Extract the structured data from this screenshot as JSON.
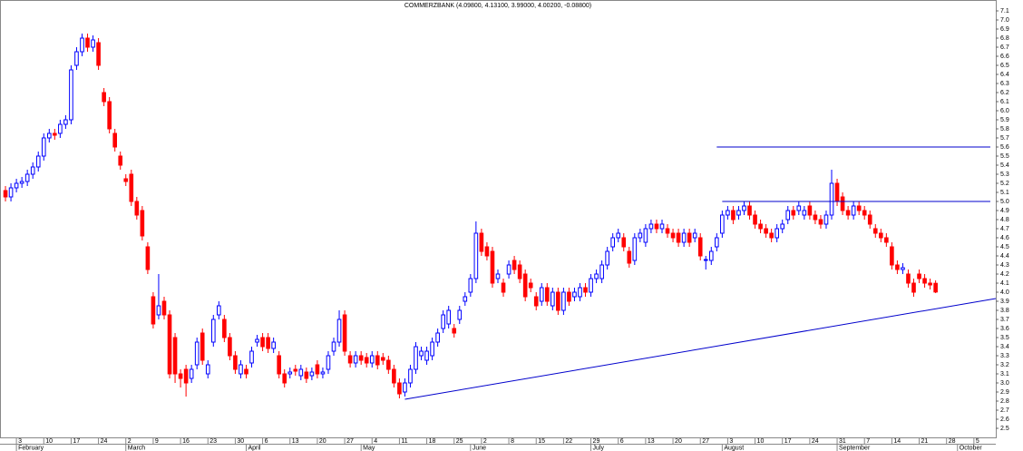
{
  "chart_data": {
    "type": "candlestick",
    "title": "COMMERZBANK (4.09800, 4.13100, 3.99000, 4.00200, -0.08800)",
    "up_color": "#0000ff",
    "down_color": "#ff0000",
    "line_color": "#0000cc",
    "grid": false,
    "xlim": [
      -1,
      181
    ],
    "ylim": [
      2.4,
      7.2
    ],
    "yticks": [
      2.5,
      2.6,
      2.7,
      2.8,
      2.9,
      {
        "value": 3,
        "label": "3.0"
      },
      3.1,
      3.2,
      3.3,
      3.4,
      3.5,
      3.6,
      3.7,
      3.8,
      3.9,
      {
        "value": 4,
        "label": "4.0"
      },
      4.1,
      4.2,
      4.3,
      4.4,
      4.5,
      4.6,
      4.7,
      4.8,
      4.9,
      {
        "value": 5,
        "label": "5.0"
      },
      5.1,
      5.2,
      5.3,
      5.4,
      5.5,
      5.6,
      5.7,
      5.8,
      5.9,
      {
        "value": 6,
        "label": "6.0"
      },
      6.1,
      6.2,
      6.3,
      6.4,
      6.5,
      6.6,
      6.7,
      6.8,
      6.9,
      {
        "value": 7,
        "label": "7.0"
      },
      7.1
    ],
    "xticks": [
      {
        "value": 2,
        "label": "3"
      },
      {
        "value": 7,
        "label": "10"
      },
      {
        "value": 12,
        "label": "17"
      },
      {
        "value": 17,
        "label": "24"
      },
      {
        "value": 22,
        "label": "2"
      },
      {
        "value": 27,
        "label": "9"
      },
      {
        "value": 32,
        "label": "16"
      },
      {
        "value": 37,
        "label": "23"
      },
      {
        "value": 42,
        "label": "30"
      },
      {
        "value": 47,
        "label": "6"
      },
      {
        "value": 52,
        "label": "13"
      },
      {
        "value": 57,
        "label": "20"
      },
      {
        "value": 62,
        "label": "27"
      },
      {
        "value": 67,
        "label": "4"
      },
      {
        "value": 72,
        "label": "11"
      },
      {
        "value": 77,
        "label": "18"
      },
      {
        "value": 82,
        "label": "25"
      },
      {
        "value": 87,
        "label": "2"
      },
      {
        "value": 92,
        "label": "8"
      },
      {
        "value": 97,
        "label": "15"
      },
      {
        "value": 102,
        "label": "22"
      },
      {
        "value": 107,
        "label": "29"
      },
      {
        "value": 112,
        "label": "6"
      },
      {
        "value": 117,
        "label": "13"
      },
      {
        "value": 122,
        "label": "20"
      },
      {
        "value": 127,
        "label": "27"
      },
      {
        "value": 132,
        "label": "3"
      },
      {
        "value": 137,
        "label": "10"
      },
      {
        "value": 142,
        "label": "17"
      },
      {
        "value": 147,
        "label": "24"
      },
      {
        "value": 152,
        "label": "31"
      },
      {
        "value": 157,
        "label": "7"
      },
      {
        "value": 162,
        "label": "14"
      },
      {
        "value": 167,
        "label": "21"
      },
      {
        "value": 172,
        "label": "28"
      },
      {
        "value": 177,
        "label": "5"
      }
    ],
    "month_ticks": [
      {
        "value": 2,
        "label": "February"
      },
      {
        "value": 22,
        "label": "March"
      },
      {
        "value": 44,
        "label": "April"
      },
      {
        "value": 65,
        "label": "May"
      },
      {
        "value": 85,
        "label": "June"
      },
      {
        "value": 107,
        "label": "July"
      },
      {
        "value": 131,
        "label": "August"
      },
      {
        "value": 152,
        "label": "September"
      },
      {
        "value": 174,
        "label": "October"
      }
    ],
    "open": [
      5.12,
      5.05,
      5.15,
      5.2,
      5.22,
      5.3,
      5.38,
      5.5,
      5.7,
      5.75,
      5.75,
      5.85,
      5.9,
      6.5,
      6.65,
      6.8,
      6.7,
      6.75,
      6.2,
      6.1,
      5.75,
      5.5,
      5.25,
      5.3,
      5.0,
      4.9,
      4.5,
      3.95,
      3.75,
      3.9,
      3.75,
      3.5,
      3.1,
      3.15,
      3.05,
      3.2,
      3.55,
      3.1,
      3.45,
      3.75,
      3.7,
      3.5,
      3.3,
      3.1,
      3.15,
      3.22,
      3.45,
      3.5,
      3.5,
      3.38,
      3.3,
      3.1,
      3.1,
      3.15,
      3.08,
      3.12,
      3.08,
      3.2,
      3.1,
      3.15,
      3.35,
      3.45,
      3.75,
      3.3,
      3.22,
      3.3,
      3.28,
      3.22,
      3.3,
      3.28,
      3.25,
      3.15,
      3.0,
      2.9,
      3.0,
      3.15,
      3.3,
      3.25,
      3.3,
      3.45,
      3.6,
      3.65,
      3.6,
      3.7,
      3.9,
      4.0,
      4.15,
      4.65,
      4.5,
      4.45,
      4.15,
      4.1,
      4.2,
      4.35,
      4.3,
      4.2,
      4.1,
      3.95,
      3.9,
      4.05,
      3.85,
      4.0,
      3.8,
      4.0,
      3.95,
      3.95,
      4.05,
      4.0,
      4.15,
      4.15,
      4.3,
      4.5,
      4.6,
      4.6,
      4.45,
      4.35,
      4.6,
      4.55,
      4.7,
      4.75,
      4.7,
      4.7,
      4.65,
      4.65,
      4.55,
      4.65,
      4.6,
      4.6,
      4.35,
      4.35,
      4.5,
      4.65,
      4.85,
      4.9,
      4.85,
      4.9,
      4.95,
      4.85,
      4.75,
      4.7,
      4.65,
      4.6,
      4.7,
      4.8,
      4.9,
      4.9,
      4.85,
      4.95,
      4.85,
      4.8,
      4.75,
      4.85,
      5.2,
      5.05,
      4.9,
      4.85,
      4.95,
      4.9,
      4.85,
      4.7,
      4.65,
      4.6,
      4.5,
      4.3,
      4.25,
      4.2,
      4.1,
      4.2,
      4.15,
      4.1,
      4.098
    ],
    "high": [
      5.17,
      5.2,
      5.25,
      5.27,
      5.35,
      5.43,
      5.55,
      5.75,
      5.8,
      5.8,
      5.9,
      5.95,
      6.5,
      6.7,
      6.85,
      6.85,
      6.83,
      6.8,
      6.25,
      6.15,
      5.8,
      5.55,
      5.3,
      5.35,
      5.05,
      4.95,
      4.55,
      4.0,
      4.2,
      3.95,
      3.8,
      3.55,
      3.15,
      3.2,
      3.2,
      3.5,
      3.6,
      3.25,
      3.75,
      3.9,
      3.75,
      3.55,
      3.35,
      3.25,
      3.2,
      3.4,
      3.53,
      3.55,
      3.55,
      3.5,
      3.35,
      3.15,
      3.17,
      3.2,
      3.2,
      3.17,
      3.17,
      3.25,
      3.17,
      3.35,
      3.5,
      3.8,
      3.8,
      3.35,
      3.35,
      3.35,
      3.33,
      3.35,
      3.35,
      3.33,
      3.3,
      3.2,
      3.05,
      3.05,
      3.2,
      3.45,
      3.4,
      3.4,
      3.5,
      3.6,
      3.8,
      3.85,
      3.65,
      3.85,
      4.0,
      4.2,
      4.78,
      4.7,
      4.55,
      4.5,
      4.25,
      4.15,
      4.35,
      4.4,
      4.35,
      4.25,
      4.15,
      4.0,
      4.1,
      4.1,
      4.05,
      4.05,
      4.05,
      4.05,
      4.05,
      4.1,
      4.1,
      4.2,
      4.25,
      4.35,
      4.5,
      4.65,
      4.7,
      4.65,
      4.5,
      4.65,
      4.7,
      4.75,
      4.8,
      4.8,
      4.8,
      4.75,
      4.7,
      4.7,
      4.7,
      4.7,
      4.7,
      4.65,
      4.4,
      4.5,
      4.65,
      4.9,
      4.95,
      4.95,
      4.95,
      5.0,
      5.0,
      4.9,
      4.8,
      4.75,
      4.7,
      4.75,
      4.8,
      4.95,
      4.95,
      5.0,
      4.95,
      5.0,
      4.9,
      4.85,
      4.9,
      5.35,
      5.25,
      5.1,
      4.95,
      5.0,
      5.0,
      4.95,
      4.9,
      4.75,
      4.7,
      4.65,
      4.55,
      4.35,
      4.32,
      4.25,
      4.15,
      4.25,
      4.2,
      4.15,
      4.131
    ],
    "low": [
      5.0,
      5.0,
      5.1,
      5.15,
      5.17,
      5.25,
      5.33,
      5.45,
      5.65,
      5.68,
      5.7,
      5.8,
      5.85,
      6.45,
      6.6,
      6.65,
      6.65,
      6.45,
      6.05,
      5.75,
      5.55,
      5.35,
      5.17,
      4.95,
      4.8,
      4.57,
      4.2,
      3.6,
      3.7,
      3.7,
      3.05,
      3.0,
      2.95,
      2.85,
      3.0,
      3.15,
      3.2,
      3.05,
      3.4,
      3.7,
      3.45,
      3.25,
      3.1,
      3.05,
      3.05,
      3.17,
      3.4,
      3.35,
      3.33,
      3.33,
      3.05,
      2.95,
      3.05,
      3.08,
      3.03,
      3.0,
      3.03,
      3.05,
      3.05,
      3.1,
      3.3,
      3.4,
      3.3,
      3.17,
      3.17,
      3.2,
      3.17,
      3.17,
      3.15,
      3.2,
      3.1,
      2.95,
      2.83,
      2.85,
      2.95,
      3.1,
      3.25,
      3.2,
      3.25,
      3.4,
      3.55,
      3.6,
      3.5,
      3.65,
      3.85,
      3.95,
      4.1,
      4.4,
      4.35,
      4.05,
      4.1,
      3.95,
      4.15,
      4.2,
      4.1,
      3.9,
      4.0,
      3.8,
      3.85,
      3.85,
      3.8,
      3.75,
      3.75,
      3.85,
      3.9,
      3.9,
      3.95,
      3.95,
      4.1,
      4.1,
      4.25,
      4.45,
      4.55,
      4.45,
      4.27,
      4.3,
      4.55,
      4.5,
      4.65,
      4.65,
      4.65,
      4.6,
      4.55,
      4.5,
      4.5,
      4.5,
      4.55,
      4.35,
      4.25,
      4.3,
      4.45,
      4.6,
      4.8,
      4.75,
      4.8,
      4.85,
      4.8,
      4.7,
      4.65,
      4.6,
      4.55,
      4.55,
      4.65,
      4.75,
      4.8,
      4.85,
      4.8,
      4.8,
      4.75,
      4.7,
      4.7,
      4.8,
      4.95,
      4.85,
      4.8,
      4.8,
      4.85,
      4.8,
      4.7,
      4.6,
      4.55,
      4.5,
      4.25,
      4.2,
      4.2,
      4.05,
      3.95,
      4.1,
      4.05,
      4.03,
      3.99
    ],
    "close": [
      5.05,
      5.15,
      5.2,
      5.22,
      5.3,
      5.38,
      5.5,
      5.7,
      5.75,
      5.73,
      5.85,
      5.9,
      6.45,
      6.65,
      6.8,
      6.7,
      6.78,
      6.5,
      6.1,
      5.8,
      5.6,
      5.4,
      5.22,
      5.0,
      4.85,
      4.62,
      4.25,
      3.65,
      3.85,
      3.75,
      3.1,
      3.1,
      3.05,
      3.0,
      3.15,
      3.45,
      3.25,
      3.2,
      3.7,
      3.85,
      3.5,
      3.3,
      3.15,
      3.2,
      3.1,
      3.35,
      3.48,
      3.4,
      3.38,
      3.45,
      3.1,
      3.0,
      3.12,
      3.13,
      3.15,
      3.05,
      3.12,
      3.1,
      3.12,
      3.3,
      3.45,
      3.7,
      3.35,
      3.22,
      3.3,
      3.25,
      3.22,
      3.3,
      3.2,
      3.25,
      3.15,
      3.0,
      2.88,
      3.0,
      3.15,
      3.4,
      3.35,
      3.35,
      3.45,
      3.55,
      3.75,
      3.8,
      3.55,
      3.8,
      3.95,
      4.15,
      4.65,
      4.45,
      4.4,
      4.1,
      4.2,
      4.0,
      4.3,
      4.25,
      4.15,
      3.95,
      4.05,
      3.85,
      4.05,
      3.9,
      4.0,
      3.8,
      4.0,
      3.9,
      4.0,
      4.05,
      4.0,
      4.15,
      4.2,
      4.3,
      4.45,
      4.6,
      4.65,
      4.5,
      4.32,
      4.6,
      4.65,
      4.7,
      4.75,
      4.7,
      4.75,
      4.65,
      4.6,
      4.55,
      4.65,
      4.55,
      4.65,
      4.4,
      4.36,
      4.45,
      4.6,
      4.85,
      4.9,
      4.8,
      4.9,
      4.95,
      4.85,
      4.75,
      4.7,
      4.65,
      4.6,
      4.7,
      4.75,
      4.9,
      4.85,
      4.95,
      4.9,
      4.85,
      4.8,
      4.75,
      4.85,
      5.2,
      5.0,
      4.9,
      4.85,
      4.95,
      4.9,
      4.85,
      4.75,
      4.65,
      4.6,
      4.55,
      4.3,
      4.25,
      4.27,
      4.1,
      4.0,
      4.15,
      4.1,
      4.08,
      4.002
    ],
    "lines": [
      {
        "x": [
          73,
          181
        ],
        "y": [
          2.82,
          3.93
        ]
      },
      {
        "x": [
          130,
          180
        ],
        "y": [
          5.6,
          5.6
        ]
      },
      {
        "x": [
          131,
          180
        ],
        "y": [
          5.0,
          5.0
        ]
      }
    ]
  }
}
